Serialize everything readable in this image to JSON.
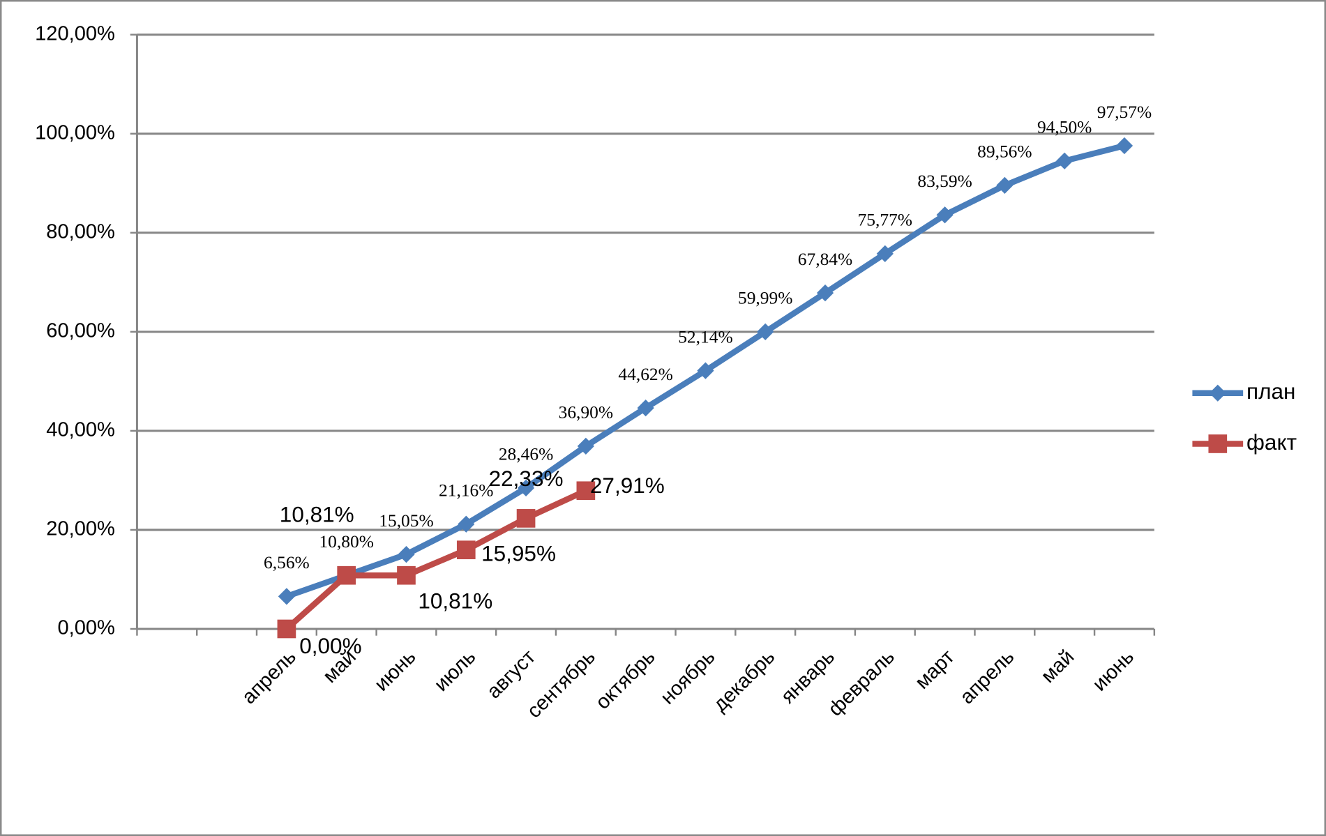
{
  "chart_data": {
    "type": "line",
    "categories": [
      null,
      null,
      "апрель",
      "май",
      "июнь",
      "июль",
      "август",
      "сентябрь",
      "октябрь",
      "ноябрь",
      "декабрь",
      "январь",
      "февраль",
      "март",
      "апрель",
      "май",
      "июнь"
    ],
    "series": [
      {
        "name": "план",
        "color": "#4a7ebb",
        "marker": "diamond",
        "values": [
          null,
          null,
          6.56,
          10.8,
          15.05,
          21.16,
          28.46,
          36.9,
          44.62,
          52.14,
          59.99,
          67.84,
          75.77,
          83.59,
          89.56,
          94.5,
          97.57
        ],
        "value_labels": [
          null,
          null,
          "6,56%",
          "10,80%",
          "15,05%",
          "21,16%",
          "28,46%",
          "36,90%",
          "44,62%",
          "52,14%",
          "59,99%",
          "67,84%",
          "75,77%",
          "83,59%",
          "89,56%",
          "94,50%",
          "97,57%"
        ]
      },
      {
        "name": "факт",
        "color": "#be4b48",
        "marker": "square",
        "values": [
          null,
          null,
          0.0,
          10.81,
          10.81,
          15.95,
          22.33,
          27.91,
          null,
          null,
          null,
          null,
          null,
          null,
          null,
          null,
          null
        ],
        "value_labels": [
          null,
          null,
          "0,00%",
          "10,81%",
          "10,81%",
          "15,95%",
          "22,33%",
          "27,91%",
          null,
          null,
          null,
          null,
          null,
          null,
          null,
          null,
          null
        ]
      }
    ],
    "ylim": [
      0,
      120
    ],
    "yticks": [
      {
        "value": 0,
        "label": "0,00%"
      },
      {
        "value": 20,
        "label": "20,00%"
      },
      {
        "value": 40,
        "label": "40,00%"
      },
      {
        "value": 60,
        "label": "60,00%"
      },
      {
        "value": 80,
        "label": "80,00%"
      },
      {
        "value": 100,
        "label": "100,00%"
      },
      {
        "value": 120,
        "label": "120,00%"
      }
    ],
    "grid": true,
    "legend": "right"
  }
}
